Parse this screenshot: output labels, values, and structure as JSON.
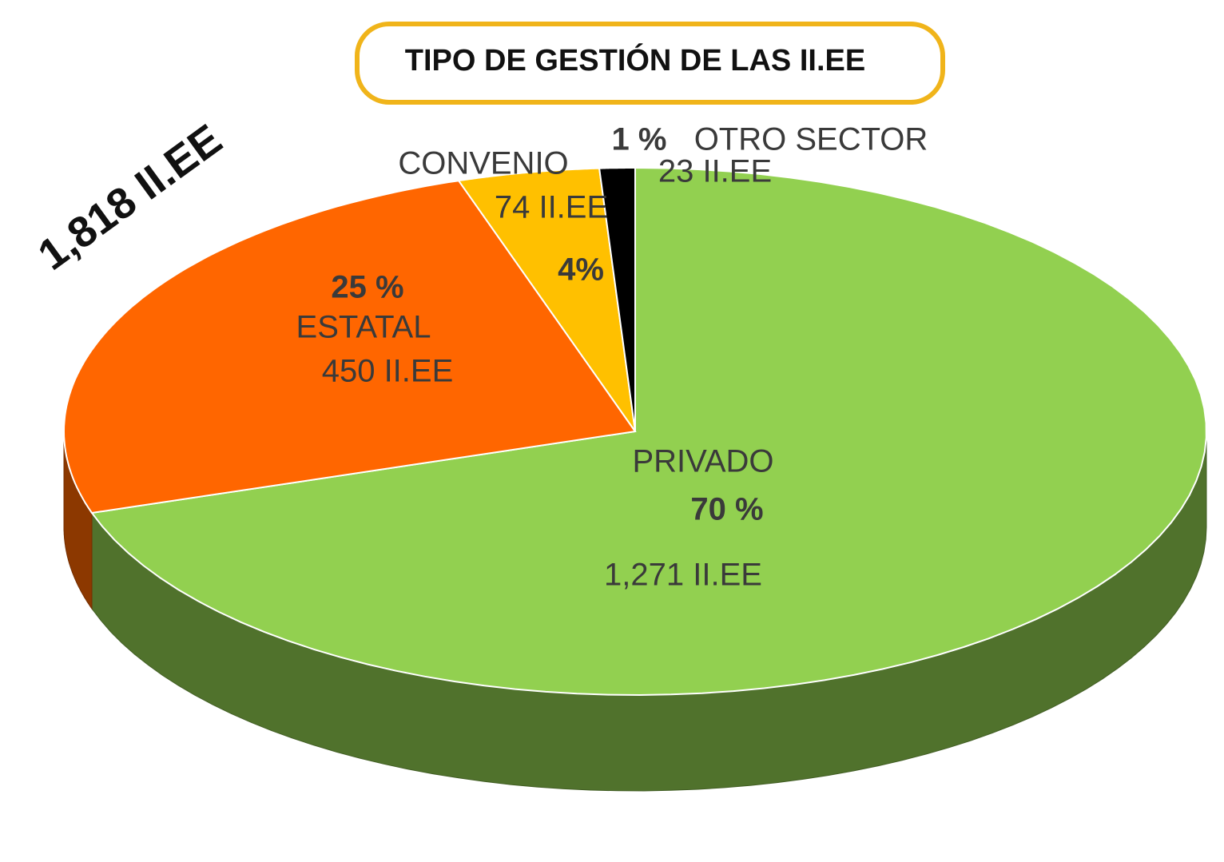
{
  "chart_data": {
    "type": "pie3d",
    "title": "TIPO DE GESTIÓN DE LAS II.EE",
    "annotation": "1,818 II.EE",
    "categories": [
      "PRIVADO",
      "ESTATAL",
      "CONVENIO",
      "OTRO SECTOR"
    ],
    "values": [
      70,
      25,
      4,
      1
    ],
    "value_labels": [
      "70 %",
      "25 %",
      "4%",
      "1 %"
    ],
    "count_labels": [
      "1,271 II.EE",
      "450 II.EE",
      "74 II.EE",
      "23 II.EE"
    ],
    "colors": [
      "#92d050",
      "#ff6600",
      "#ffc000",
      "#000000"
    ]
  }
}
